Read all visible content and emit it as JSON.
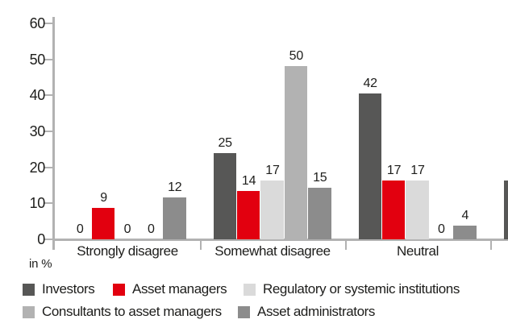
{
  "chart_data": {
    "type": "bar",
    "title": "",
    "unit_label": "in %",
    "categories": [
      "Strongly disagree",
      "Somewhat disagree",
      "Neutral"
    ],
    "series": [
      {
        "name": "Investors",
        "color": "#575756",
        "values": [
          0,
          25,
          42
        ]
      },
      {
        "name": "Asset managers",
        "color": "#e2000f",
        "values": [
          9,
          14,
          17
        ]
      },
      {
        "name": "Regulatory or systemic institutions",
        "color": "#dadada",
        "values": [
          0,
          17,
          17
        ]
      },
      {
        "name": "Consultants to asset managers",
        "color": "#b2b2b2",
        "values": [
          0,
          50,
          0
        ]
      },
      {
        "name": "Asset administrators",
        "color": "#8c8c8c",
        "values": [
          12,
          15,
          4
        ]
      }
    ],
    "clipped_next_group": {
      "series": "Investors",
      "approx_value": 17,
      "note": "partial bar cut off at right image edge, no label visible"
    },
    "y_axis": {
      "ticks": [
        0,
        10,
        20,
        30,
        40,
        50,
        60
      ],
      "range": [
        0,
        60
      ]
    },
    "value_labels": true,
    "grid": false,
    "legend_position": "bottom",
    "legend_layout": {
      "rows": [
        [
          0,
          1,
          2
        ],
        [
          3,
          4
        ]
      ]
    },
    "axis_color": "#b2b2b2",
    "text_color": "#1d1d1b"
  }
}
